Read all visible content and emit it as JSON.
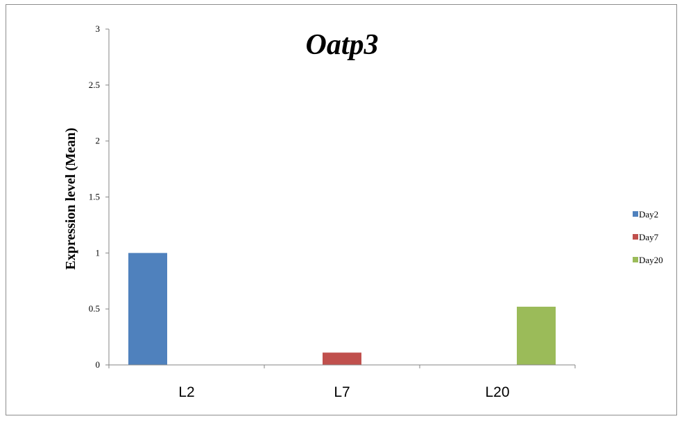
{
  "chart_data": {
    "type": "bar",
    "title": "Oatp3",
    "xlabel": "",
    "ylabel": "Expression level (Mean)",
    "categories": [
      "L2",
      "L7",
      "L20"
    ],
    "series": [
      {
        "name": "Day2",
        "color": "#4f81bd",
        "values": [
          1.0,
          null,
          null
        ]
      },
      {
        "name": "Day7",
        "color": "#c0504d",
        "values": [
          null,
          0.11,
          null
        ]
      },
      {
        "name": "Day20",
        "color": "#9bbb59",
        "values": [
          null,
          null,
          0.52
        ]
      }
    ],
    "ylim": [
      0,
      3
    ],
    "yticks": [
      "0",
      "0.5",
      "1",
      "1.5",
      "2",
      "2.5",
      "3"
    ],
    "grid": false,
    "legend_position": "right"
  }
}
